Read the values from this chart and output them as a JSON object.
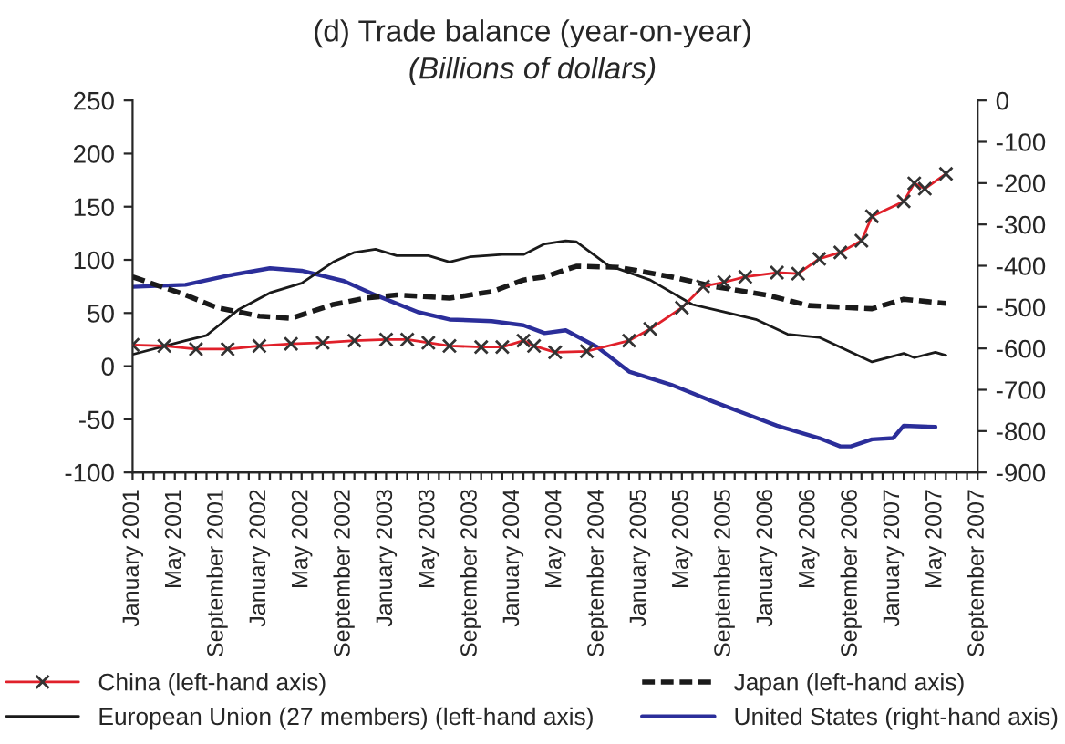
{
  "chart_data": {
    "type": "line",
    "title": "(d) Trade balance (year-on-year)",
    "subtitle": "(Billions of dollars)",
    "series": [
      {
        "name": "China (left-hand axis)",
        "color": "#e0202a",
        "marker": "cross",
        "line_style": "solid",
        "x": [
          "2001-01",
          "2001-04",
          "2001-07",
          "2001-10",
          "2002-01",
          "2002-04",
          "2002-07",
          "2002-10",
          "2003-01",
          "2003-03",
          "2003-05",
          "2003-07",
          "2003-10",
          "2003-12",
          "2004-02",
          "2004-03",
          "2004-05",
          "2004-08",
          "2004-12",
          "2005-02",
          "2005-05",
          "2005-07",
          "2005-09",
          "2005-11",
          "2006-02",
          "2006-04",
          "2006-06",
          "2006-08",
          "2006-10",
          "2006-11",
          "2007-02",
          "2007-03",
          "2007-04",
          "2007-06"
        ],
        "values": [
          20,
          19,
          16,
          16,
          19,
          21,
          22,
          24,
          25,
          25,
          22,
          19,
          18,
          18,
          24,
          19,
          13,
          14,
          24,
          35,
          55,
          75,
          79,
          84,
          88,
          87,
          101,
          107,
          118,
          141,
          155,
          172,
          167,
          181
        ]
      },
      {
        "name": "European Union (27 members) (left-hand axis)",
        "color": "#1a1a1a",
        "marker": "none",
        "line_style": "solid",
        "x": [
          "2001-01",
          "2001-06",
          "2001-08",
          "2001-11",
          "2002-02",
          "2002-05",
          "2002-08",
          "2002-10",
          "2002-12",
          "2003-02",
          "2003-05",
          "2003-07",
          "2003-09",
          "2003-12",
          "2004-02",
          "2004-04",
          "2004-06",
          "2004-07",
          "2004-10",
          "2005-02",
          "2005-06",
          "2005-09",
          "2005-12",
          "2006-03",
          "2006-06",
          "2006-11",
          "2007-02",
          "2007-03",
          "2007-05",
          "2007-06"
        ],
        "values": [
          11,
          24,
          29,
          53,
          69,
          78,
          98,
          107,
          110,
          104,
          104,
          98,
          103,
          105,
          105,
          115,
          118,
          117,
          95,
          81,
          58,
          51,
          44,
          30,
          27,
          4,
          12,
          8,
          13,
          10
        ]
      },
      {
        "name": "Japan (left-hand axis)",
        "color": "#1a1a1a",
        "marker": "none",
        "line_style": "dashed",
        "x": [
          "2001-01",
          "2001-06",
          "2001-09",
          "2002-01",
          "2002-04",
          "2002-08",
          "2002-11",
          "2003-02",
          "2003-07",
          "2003-11",
          "2004-02",
          "2004-04",
          "2004-07",
          "2004-11",
          "2005-04",
          "2005-08",
          "2006-01",
          "2006-05",
          "2006-11",
          "2007-02",
          "2007-06"
        ],
        "values": [
          84,
          67,
          55,
          47,
          45,
          58,
          64,
          67,
          64,
          70,
          81,
          84,
          94,
          93,
          84,
          75,
          67,
          57,
          54,
          63,
          59
        ]
      },
      {
        "name": "United States (right-hand axis)",
        "color": "#2b2e9a",
        "marker": "none",
        "line_style": "solid",
        "axis": "y2",
        "x": [
          "2001-01",
          "2001-06",
          "2001-10",
          "2002-02",
          "2002-05",
          "2002-09",
          "2002-12",
          "2003-04",
          "2003-07",
          "2003-11",
          "2004-02",
          "2004-04",
          "2004-06",
          "2004-09",
          "2004-12",
          "2005-04",
          "2005-08",
          "2005-11",
          "2006-02",
          "2006-06",
          "2006-08",
          "2006-09",
          "2006-11",
          "2007-01",
          "2007-02",
          "2007-05"
        ],
        "values": [
          -451,
          -446,
          -424,
          -406,
          -412,
          -437,
          -471,
          -512,
          -530,
          -534,
          -544,
          -563,
          -556,
          -597,
          -656,
          -688,
          -729,
          -758,
          -787,
          -817,
          -837,
          -837,
          -820,
          -817,
          -787,
          -790
        ]
      }
    ],
    "xlim": [
      "2001-01",
      "2007-09"
    ],
    "xticks": [
      {
        "value": "2001-01",
        "label": "January 2001"
      },
      {
        "value": "2001-02",
        "label": null
      },
      {
        "value": "2001-03",
        "label": null
      },
      {
        "value": "2001-04",
        "label": null
      },
      {
        "value": "2001-05",
        "label": "May 2001"
      },
      {
        "value": "2001-06",
        "label": null
      },
      {
        "value": "2001-07",
        "label": null
      },
      {
        "value": "2001-08",
        "label": null
      },
      {
        "value": "2001-09",
        "label": "September 2001"
      },
      {
        "value": "2001-10",
        "label": null
      },
      {
        "value": "2001-11",
        "label": null
      },
      {
        "value": "2001-12",
        "label": null
      },
      {
        "value": "2002-01",
        "label": "January 2002"
      },
      {
        "value": "2002-02",
        "label": null
      },
      {
        "value": "2002-03",
        "label": null
      },
      {
        "value": "2002-04",
        "label": null
      },
      {
        "value": "2002-05",
        "label": "May 2002"
      },
      {
        "value": "2002-06",
        "label": null
      },
      {
        "value": "2002-07",
        "label": null
      },
      {
        "value": "2002-08",
        "label": null
      },
      {
        "value": "2002-09",
        "label": "September 2002"
      },
      {
        "value": "2002-10",
        "label": null
      },
      {
        "value": "2002-11",
        "label": null
      },
      {
        "value": "2002-12",
        "label": null
      },
      {
        "value": "2003-01",
        "label": "January 2003"
      },
      {
        "value": "2003-02",
        "label": null
      },
      {
        "value": "2003-03",
        "label": null
      },
      {
        "value": "2003-04",
        "label": null
      },
      {
        "value": "2003-05",
        "label": "May 2003"
      },
      {
        "value": "2003-06",
        "label": null
      },
      {
        "value": "2003-07",
        "label": null
      },
      {
        "value": "2003-08",
        "label": null
      },
      {
        "value": "2003-09",
        "label": "September 2003"
      },
      {
        "value": "2003-10",
        "label": null
      },
      {
        "value": "2003-11",
        "label": null
      },
      {
        "value": "2003-12",
        "label": null
      },
      {
        "value": "2004-01",
        "label": "January 2004"
      },
      {
        "value": "2004-02",
        "label": null
      },
      {
        "value": "2004-03",
        "label": null
      },
      {
        "value": "2004-04",
        "label": null
      },
      {
        "value": "2004-05",
        "label": "May 2004"
      },
      {
        "value": "2004-06",
        "label": null
      },
      {
        "value": "2004-07",
        "label": null
      },
      {
        "value": "2004-08",
        "label": null
      },
      {
        "value": "2004-09",
        "label": "September 2004"
      },
      {
        "value": "2004-10",
        "label": null
      },
      {
        "value": "2004-11",
        "label": null
      },
      {
        "value": "2004-12",
        "label": null
      },
      {
        "value": "2005-01",
        "label": "January 2005"
      },
      {
        "value": "2005-02",
        "label": null
      },
      {
        "value": "2005-03",
        "label": null
      },
      {
        "value": "2005-04",
        "label": null
      },
      {
        "value": "2005-05",
        "label": "May 2005"
      },
      {
        "value": "2005-06",
        "label": null
      },
      {
        "value": "2005-07",
        "label": null
      },
      {
        "value": "2005-08",
        "label": null
      },
      {
        "value": "2005-09",
        "label": "September 2005"
      },
      {
        "value": "2005-10",
        "label": null
      },
      {
        "value": "2005-11",
        "label": null
      },
      {
        "value": "2005-12",
        "label": null
      },
      {
        "value": "2006-01",
        "label": "January 2006"
      },
      {
        "value": "2006-02",
        "label": null
      },
      {
        "value": "2006-03",
        "label": null
      },
      {
        "value": "2006-04",
        "label": null
      },
      {
        "value": "2006-05",
        "label": "May 2006"
      },
      {
        "value": "2006-06",
        "label": null
      },
      {
        "value": "2006-07",
        "label": null
      },
      {
        "value": "2006-08",
        "label": null
      },
      {
        "value": "2006-09",
        "label": "September 2006"
      },
      {
        "value": "2006-10",
        "label": null
      },
      {
        "value": "2006-11",
        "label": null
      },
      {
        "value": "2006-12",
        "label": null
      },
      {
        "value": "2007-01",
        "label": "January 2007"
      },
      {
        "value": "2007-02",
        "label": null
      },
      {
        "value": "2007-03",
        "label": null
      },
      {
        "value": "2007-04",
        "label": null
      },
      {
        "value": "2007-05",
        "label": "May 2007"
      },
      {
        "value": "2007-06",
        "label": null
      },
      {
        "value": "2007-07",
        "label": null
      },
      {
        "value": "2007-08",
        "label": null
      },
      {
        "value": "2007-09",
        "label": "September 2007"
      }
    ],
    "ylim": [
      -100,
      250
    ],
    "yticks": [
      -100,
      -50,
      0,
      50,
      100,
      150,
      200,
      250
    ],
    "y2lim": [
      -900,
      0
    ],
    "y2ticks": [
      -900,
      -800,
      -700,
      -600,
      -500,
      -400,
      -300,
      -200,
      -100,
      0
    ],
    "grid": false,
    "legend": "bottom"
  }
}
